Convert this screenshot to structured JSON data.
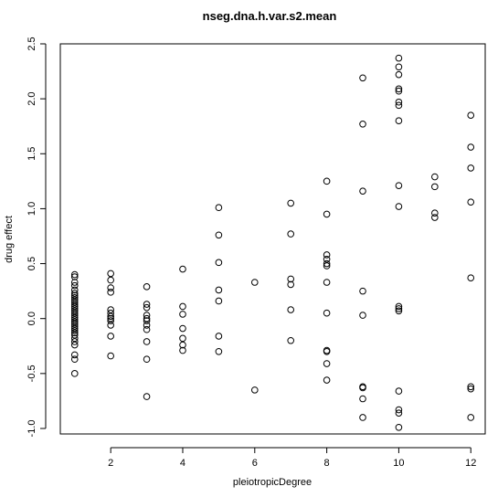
{
  "chart_data": {
    "type": "scatter",
    "title": "nseg.dna.h.var.s2.mean",
    "xlabel": "pleiotropicDegree",
    "ylabel": "drug effect",
    "xlim": [
      0.6,
      12.4
    ],
    "ylim": [
      -1.05,
      2.5
    ],
    "xticks": [
      "2",
      "4",
      "6",
      "8",
      "10",
      "12"
    ],
    "yticks": [
      "-1.0",
      "-0.5",
      "0.0",
      "0.5",
      "1.0",
      "1.5",
      "2.0",
      "2.5"
    ],
    "grid": false,
    "series": [
      {
        "points": [
          [
            1,
            0.4
          ],
          [
            1,
            0.38
          ],
          [
            1,
            0.33
          ],
          [
            1,
            0.3
          ],
          [
            1,
            0.26
          ],
          [
            1,
            0.23
          ],
          [
            1,
            0.21
          ],
          [
            1,
            0.19
          ],
          [
            1,
            0.17
          ],
          [
            1,
            0.15
          ],
          [
            1,
            0.13
          ],
          [
            1,
            0.11
          ],
          [
            1,
            0.09
          ],
          [
            1,
            0.07
          ],
          [
            1,
            0.05
          ],
          [
            1,
            0.03
          ],
          [
            1,
            0.01
          ],
          [
            1,
            -0.01
          ],
          [
            1,
            -0.03
          ],
          [
            1,
            -0.05
          ],
          [
            1,
            -0.07
          ],
          [
            1,
            -0.09
          ],
          [
            1,
            -0.11
          ],
          [
            1,
            -0.13
          ],
          [
            1,
            -0.15
          ],
          [
            1,
            -0.18
          ],
          [
            1,
            -0.21
          ],
          [
            1,
            -0.24
          ],
          [
            1,
            -0.33
          ],
          [
            1,
            -0.37
          ],
          [
            1,
            -0.5
          ],
          [
            2,
            0.41
          ],
          [
            2,
            0.35
          ],
          [
            2,
            0.28
          ],
          [
            2,
            0.24
          ],
          [
            2,
            0.08
          ],
          [
            2,
            0.05
          ],
          [
            2,
            0.02
          ],
          [
            2,
            0.0
          ],
          [
            2,
            -0.02
          ],
          [
            2,
            -0.06
          ],
          [
            2,
            -0.16
          ],
          [
            2,
            -0.34
          ],
          [
            3,
            0.29
          ],
          [
            3,
            0.13
          ],
          [
            3,
            0.1
          ],
          [
            3,
            0.03
          ],
          [
            3,
            0.0
          ],
          [
            3,
            -0.02
          ],
          [
            3,
            -0.06
          ],
          [
            3,
            -0.1
          ],
          [
            3,
            -0.21
          ],
          [
            3,
            -0.37
          ],
          [
            3,
            -0.71
          ],
          [
            4,
            0.45
          ],
          [
            4,
            0.11
          ],
          [
            4,
            0.04
          ],
          [
            4,
            -0.09
          ],
          [
            4,
            -0.18
          ],
          [
            4,
            -0.24
          ],
          [
            4,
            -0.29
          ],
          [
            5,
            1.01
          ],
          [
            5,
            0.76
          ],
          [
            5,
            0.51
          ],
          [
            5,
            0.26
          ],
          [
            5,
            0.16
          ],
          [
            5,
            -0.16
          ],
          [
            5,
            -0.3
          ],
          [
            6,
            0.33
          ],
          [
            6,
            -0.65
          ],
          [
            7,
            1.05
          ],
          [
            7,
            0.77
          ],
          [
            7,
            0.36
          ],
          [
            7,
            0.31
          ],
          [
            7,
            0.08
          ],
          [
            7,
            -0.2
          ],
          [
            8,
            1.25
          ],
          [
            8,
            0.95
          ],
          [
            8,
            0.58
          ],
          [
            8,
            0.54
          ],
          [
            8,
            0.5
          ],
          [
            8,
            0.48
          ],
          [
            8,
            0.33
          ],
          [
            8,
            0.05
          ],
          [
            8,
            -0.29
          ],
          [
            8,
            -0.3
          ],
          [
            8,
            -0.41
          ],
          [
            8,
            -0.56
          ],
          [
            9,
            2.19
          ],
          [
            9,
            1.77
          ],
          [
            9,
            1.16
          ],
          [
            9,
            0.25
          ],
          [
            9,
            0.03
          ],
          [
            9,
            -0.62
          ],
          [
            9,
            -0.63
          ],
          [
            9,
            -0.73
          ],
          [
            9,
            -0.9
          ],
          [
            10,
            2.37
          ],
          [
            10,
            2.29
          ],
          [
            10,
            2.22
          ],
          [
            10,
            2.09
          ],
          [
            10,
            2.07
          ],
          [
            10,
            1.97
          ],
          [
            10,
            1.94
          ],
          [
            10,
            1.8
          ],
          [
            10,
            1.21
          ],
          [
            10,
            1.02
          ],
          [
            10,
            0.11
          ],
          [
            10,
            0.09
          ],
          [
            10,
            0.07
          ],
          [
            10,
            -0.66
          ],
          [
            10,
            -0.83
          ],
          [
            10,
            -0.86
          ],
          [
            10,
            -0.99
          ],
          [
            11,
            1.29
          ],
          [
            11,
            1.2
          ],
          [
            11,
            0.96
          ],
          [
            11,
            0.92
          ],
          [
            12,
            1.85
          ],
          [
            12,
            1.56
          ],
          [
            12,
            1.37
          ],
          [
            12,
            1.06
          ],
          [
            12,
            0.37
          ],
          [
            12,
            -0.62
          ],
          [
            12,
            -0.64
          ],
          [
            12,
            -0.9
          ]
        ]
      }
    ]
  }
}
